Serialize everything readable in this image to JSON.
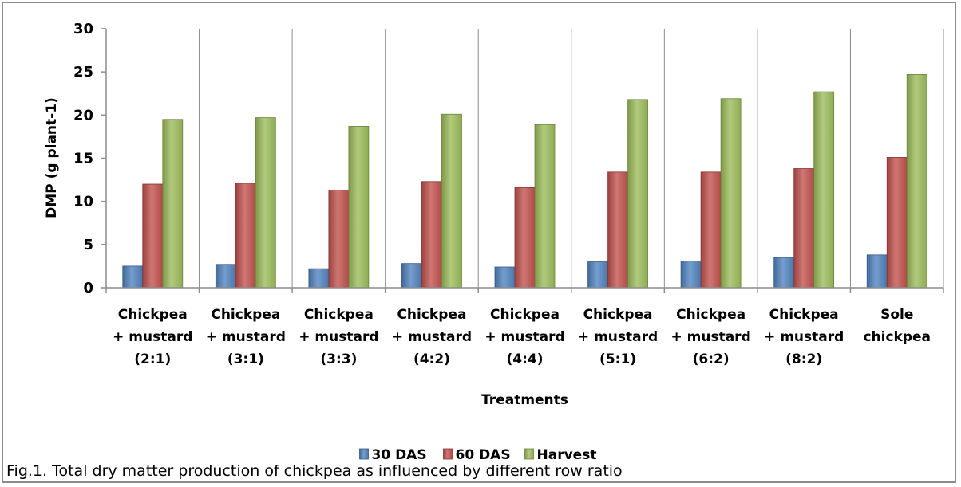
{
  "caption": "Fig.1. Total dry matter production of chickpea as influenced by different row ratio",
  "chart_data": {
    "type": "bar",
    "xlabel": "Treatments",
    "ylabel": "DMP (g plant-1)",
    "ylim": [
      0,
      30
    ],
    "yticks": [
      0,
      5,
      10,
      15,
      20,
      25,
      30
    ],
    "grid": "vertical category separators",
    "legend_position": "bottom",
    "categories": [
      [
        "Chickpea",
        "+ mustard",
        "(2:1)"
      ],
      [
        "Chickpea",
        "+ mustard",
        "(3:1)"
      ],
      [
        "Chickpea",
        "+ mustard",
        "(3:3)"
      ],
      [
        "Chickpea",
        "+ mustard",
        "(4:2)"
      ],
      [
        "Chickpea",
        "+ mustard",
        "(4:4)"
      ],
      [
        "Chickpea",
        "+ mustard",
        "(5:1)"
      ],
      [
        "Chickpea",
        "+ mustard",
        "(6:2)"
      ],
      [
        "Chickpea",
        "+ mustard",
        "(8:2)"
      ],
      [
        "Sole",
        "chickpea"
      ]
    ],
    "series": [
      {
        "name": "30 DAS",
        "color": "#4f81bd",
        "values": [
          2.5,
          2.7,
          2.2,
          2.8,
          2.4,
          3.0,
          3.1,
          3.5,
          3.8
        ]
      },
      {
        "name": "60 DAS",
        "color": "#c0504d",
        "values": [
          12.0,
          12.1,
          11.3,
          12.3,
          11.6,
          13.4,
          13.4,
          13.8,
          15.1
        ]
      },
      {
        "name": "Harvest",
        "color": "#9bbb59",
        "values": [
          19.5,
          19.7,
          18.7,
          20.1,
          18.9,
          21.8,
          21.9,
          22.7,
          24.7
        ]
      }
    ]
  }
}
